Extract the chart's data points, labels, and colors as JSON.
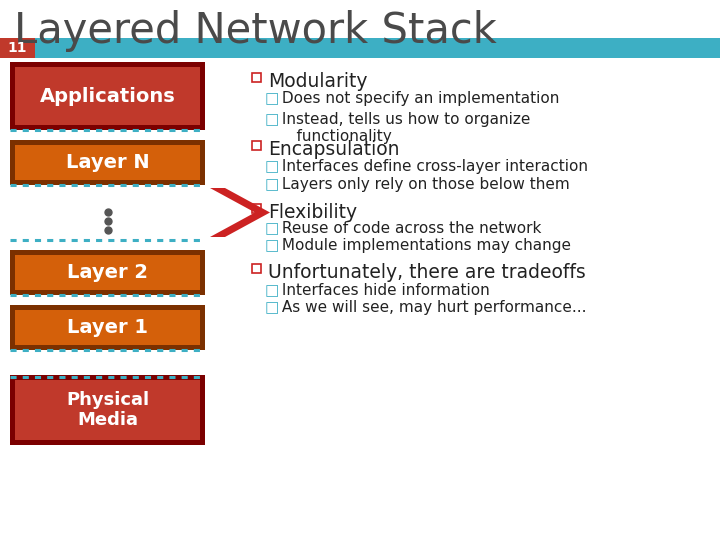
{
  "title": "Layered Network Stack",
  "slide_number": "11",
  "header_bar_color": "#3dafc4",
  "slide_number_bg": "#c0392b",
  "background_color": "#ffffff",
  "title_color": "#4a4a4a",
  "title_fontsize": 30,
  "layers": [
    {
      "label": "Applications",
      "color": "#c0392b",
      "border_color": "#7b0000",
      "text_color": "#ffffff",
      "fontsize": 14
    },
    {
      "label": "Layer N",
      "color": "#d4600a",
      "border_color": "#7b3000",
      "text_color": "#ffffff",
      "fontsize": 14
    },
    {
      "label": "Layer 2",
      "color": "#d4600a",
      "border_color": "#7b3000",
      "text_color": "#ffffff",
      "fontsize": 14
    },
    {
      "label": "Layer 1",
      "color": "#d4600a",
      "border_color": "#7b3000",
      "text_color": "#ffffff",
      "fontsize": 14
    },
    {
      "label": "Physical\nMedia",
      "color": "#c0392b",
      "border_color": "#7b0000",
      "text_color": "#ffffff",
      "fontsize": 13
    }
  ],
  "dotted_line_color": "#3dafc4",
  "arrow_color": "#cc2222",
  "bullet_items": [
    {
      "level": 0,
      "text": "Modularity",
      "bullet_color": "#cc2222"
    },
    {
      "level": 1,
      "text": "□ Does not specify an implementation",
      "bullet_color": "#3dafc4"
    },
    {
      "level": 1,
      "text": "□ Instead, tells us how to organize\n    functionality",
      "bullet_color": "#3dafc4"
    },
    {
      "level": 0,
      "text": "Encapsulation",
      "bullet_color": "#cc2222"
    },
    {
      "level": 1,
      "text": "□ Interfaces define cross-layer interaction",
      "bullet_color": "#3dafc4"
    },
    {
      "level": 1,
      "text": "□ Layers only rely on those below them",
      "bullet_color": "#3dafc4"
    },
    {
      "level": 0,
      "text": "Flexibility",
      "bullet_color": "#cc2222"
    },
    {
      "level": 1,
      "text": "□ Reuse of code across the network",
      "bullet_color": "#3dafc4"
    },
    {
      "level": 1,
      "text": "□ Module implementations may change",
      "bullet_color": "#3dafc4"
    },
    {
      "level": 0,
      "text": "Unfortunately, there are tradeoffs",
      "bullet_color": "#cc2222"
    },
    {
      "level": 1,
      "text": "□ Interfaces hide information",
      "bullet_color": "#3dafc4"
    },
    {
      "level": 1,
      "text": "□ As we will see, may hurt performance...",
      "bullet_color": "#3dafc4"
    }
  ]
}
